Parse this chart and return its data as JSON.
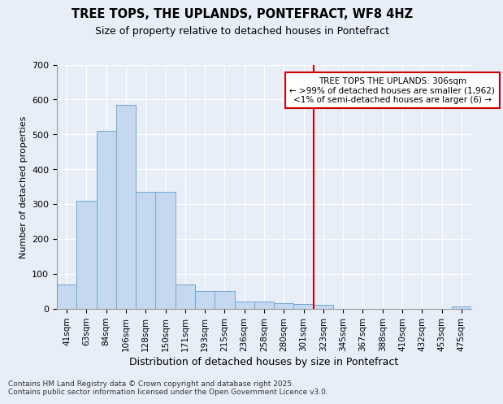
{
  "title": "TREE TOPS, THE UPLANDS, PONTEFRACT, WF8 4HZ",
  "subtitle": "Size of property relative to detached houses in Pontefract",
  "xlabel": "Distribution of detached houses by size in Pontefract",
  "ylabel": "Number of detached properties",
  "categories": [
    "41sqm",
    "63sqm",
    "84sqm",
    "106sqm",
    "128sqm",
    "150sqm",
    "171sqm",
    "193sqm",
    "215sqm",
    "236sqm",
    "258sqm",
    "280sqm",
    "301sqm",
    "323sqm",
    "345sqm",
    "367sqm",
    "388sqm",
    "410sqm",
    "432sqm",
    "453sqm",
    "475sqm"
  ],
  "values": [
    70,
    310,
    510,
    585,
    335,
    335,
    70,
    50,
    50,
    20,
    20,
    15,
    12,
    10,
    0,
    0,
    0,
    0,
    0,
    0,
    5
  ],
  "bar_color": "#c5d8f0",
  "bar_edge_color": "#6fa8d4",
  "vline_position": 12.5,
  "annotation_line1": "TREE TOPS THE UPLANDS: 306sqm",
  "annotation_line2": "← >99% of detached houses are smaller (1,962)",
  "annotation_line3": "<1% of semi-detached houses are larger (6) →",
  "annotation_box_color": "#ffffff",
  "annotation_box_edge": "#cc0000",
  "vline_color": "#cc0000",
  "footer1": "Contains HM Land Registry data © Crown copyright and database right 2025.",
  "footer2": "Contains public sector information licensed under the Open Government Licence v3.0.",
  "bg_color": "#e8eef8",
  "ylim": [
    0,
    700
  ],
  "yticks": [
    0,
    100,
    200,
    300,
    400,
    500,
    600,
    700
  ]
}
